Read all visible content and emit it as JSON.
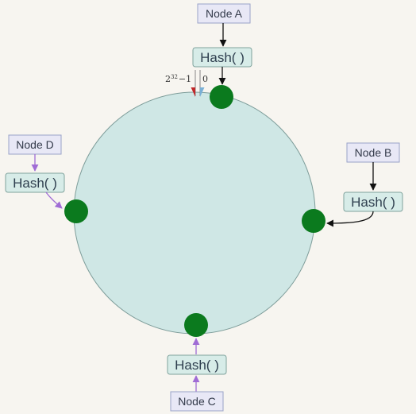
{
  "nodes": {
    "a": {
      "label": "Node A"
    },
    "b": {
      "label": "Node B"
    },
    "c": {
      "label": "Node C"
    },
    "d": {
      "label": "Node D"
    }
  },
  "hash_label": "Hash( )",
  "ring": {
    "start_label": "0",
    "end_label_base": "2",
    "end_label_exp": "32",
    "end_label_rest": "−1"
  },
  "colors": {
    "ring_fill": "#cfe7e5",
    "ring_stroke": "#7d9c99",
    "node_dot": "#0b7a1e",
    "node_box_fill": "#e8e8f6",
    "node_box_stroke": "#9aa2c8",
    "hash_box_fill": "#d7ece8",
    "hash_box_stroke": "#7fa29c",
    "arrow_black": "#111111",
    "arrow_purple": "#a06cd5",
    "marker_red": "#c0282a",
    "marker_blue": "#7ab0d6"
  }
}
